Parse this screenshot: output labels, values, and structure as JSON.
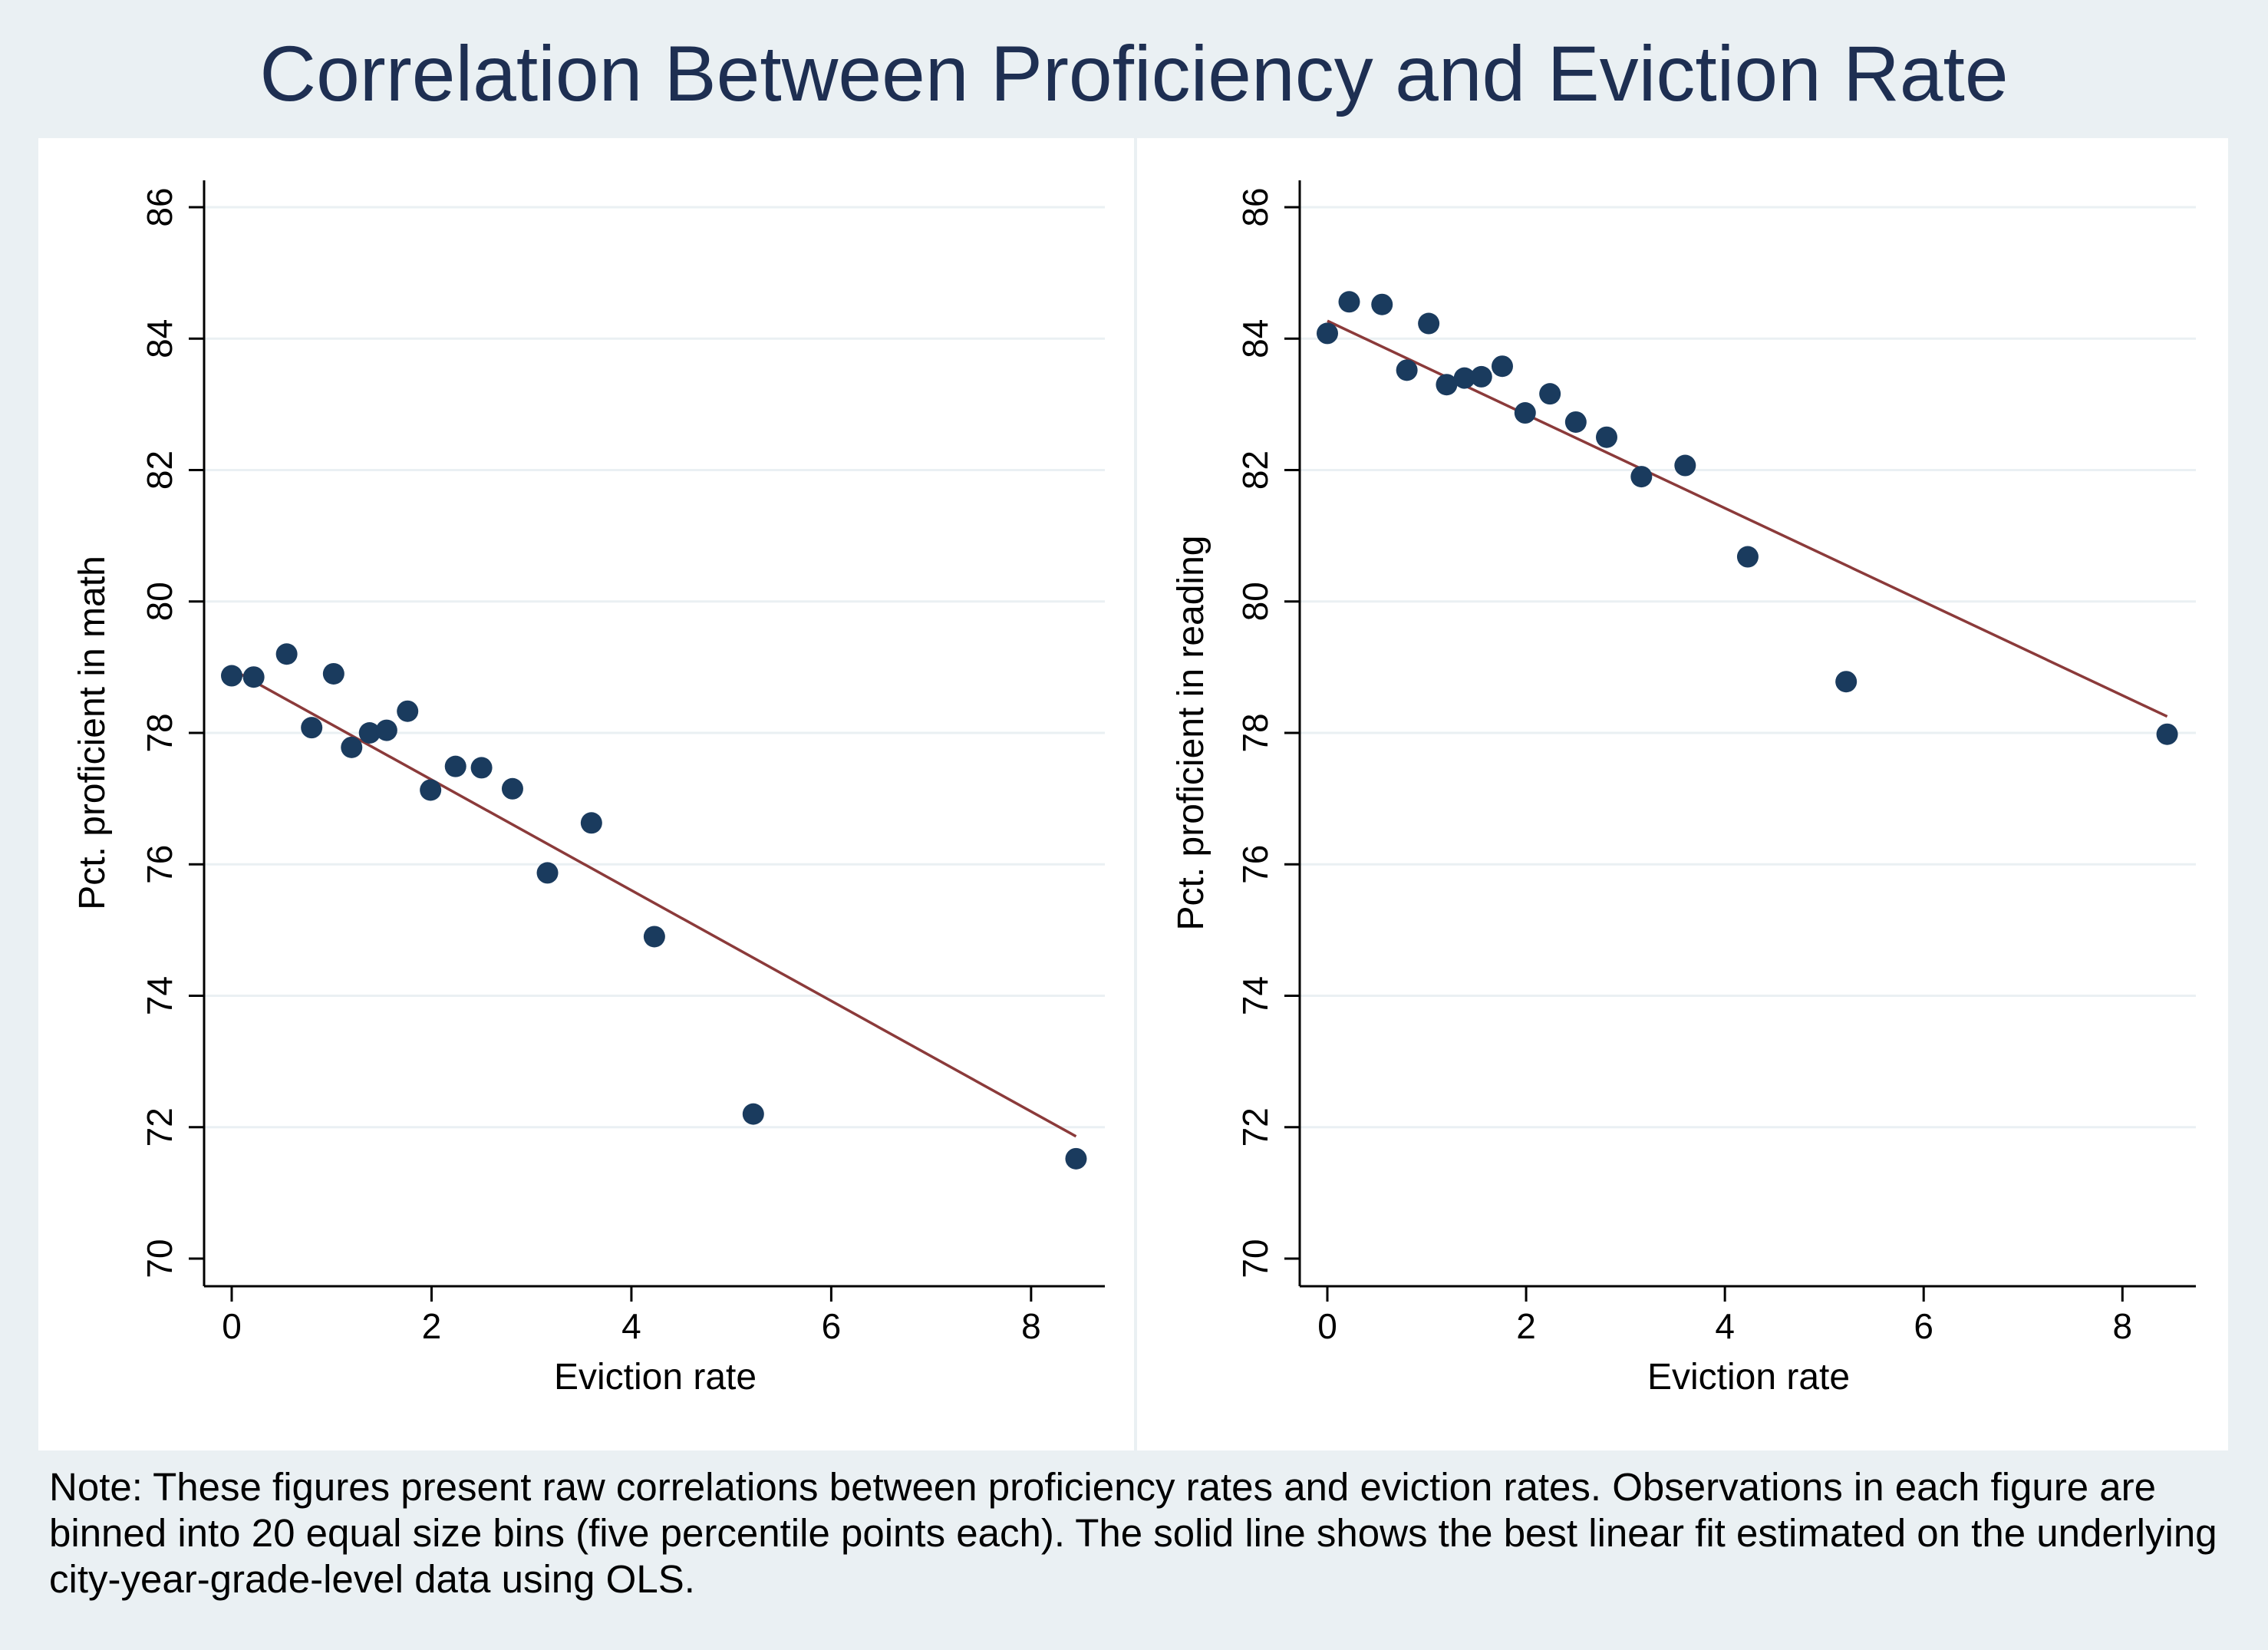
{
  "title": "Correlation Between Proficiency and Eviction Rate",
  "note": "Note: These figures present raw correlations between proficiency rates and eviction rates. Observations in each figure are binned into 20 equal size bins (five percentile points each). The solid line shows the best linear fit estimated on the underlying city-year-grade-level data using OLS.",
  "colors": {
    "background": "#eaf0f3",
    "plot_bg": "#ffffff",
    "marker": "#1a3b5e",
    "fit_line": "#8b3a3a",
    "grid": "#eaf0f3",
    "title": "#1e2f52"
  },
  "chart_data": [
    {
      "type": "scatter",
      "xlabel": "Eviction rate",
      "ylabel": "Pct. proficient in math",
      "xlim": [
        0,
        8.6
      ],
      "ylim": [
        70,
        86
      ],
      "xticks": [
        0,
        2,
        4,
        6,
        8
      ],
      "yticks": [
        70,
        72,
        74,
        76,
        78,
        80,
        82,
        84,
        86
      ],
      "grid": true,
      "x": [
        0.0,
        0.22,
        0.55,
        0.8,
        1.02,
        1.2,
        1.38,
        1.55,
        1.76,
        1.99,
        2.24,
        2.5,
        2.81,
        3.16,
        3.6,
        4.23,
        5.22,
        8.45
      ],
      "y": [
        78.87,
        78.85,
        79.2,
        78.08,
        78.9,
        77.78,
        78.0,
        78.04,
        78.33,
        77.13,
        77.49,
        77.47,
        77.15,
        75.87,
        76.63,
        74.9,
        72.2,
        71.52
      ],
      "fit_line": {
        "x": [
          0.0,
          8.45
        ],
        "y": [
          78.97,
          71.86
        ]
      }
    },
    {
      "type": "scatter",
      "xlabel": "Eviction rate",
      "ylabel": "Pct. proficient in reading",
      "xlim": [
        0,
        8.6
      ],
      "ylim": [
        70,
        86
      ],
      "xticks": [
        0,
        2,
        4,
        6,
        8
      ],
      "yticks": [
        70,
        72,
        74,
        76,
        78,
        80,
        82,
        84,
        86
      ],
      "grid": true,
      "x": [
        0.0,
        0.22,
        0.55,
        0.8,
        1.02,
        1.2,
        1.38,
        1.55,
        1.76,
        1.99,
        2.24,
        2.5,
        2.81,
        3.16,
        3.6,
        4.23,
        5.22,
        8.45
      ],
      "y": [
        84.08,
        84.56,
        84.52,
        83.52,
        84.23,
        83.3,
        83.4,
        83.42,
        83.58,
        82.87,
        83.16,
        82.73,
        82.5,
        81.9,
        82.07,
        80.68,
        78.78,
        77.98
      ],
      "fit_line": {
        "x": [
          0.0,
          8.45
        ],
        "y": [
          84.27,
          78.25
        ]
      }
    }
  ]
}
